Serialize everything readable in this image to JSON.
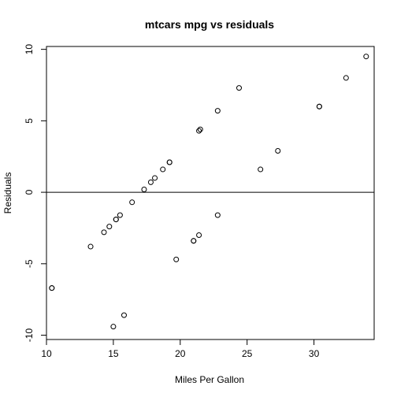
{
  "chart_data": {
    "type": "scatter",
    "title": "mtcars mpg vs residuals",
    "xlabel": "Miles Per Gallon",
    "ylabel": "Residuals",
    "xlim": [
      10,
      34.5
    ],
    "ylim": [
      -10.3,
      10.2
    ],
    "xticks": [
      10,
      15,
      20,
      25,
      30
    ],
    "xtick_labels": [
      "10",
      "15",
      "20",
      "25",
      "30"
    ],
    "yticks": [
      -10,
      -5,
      0,
      5,
      10
    ],
    "ytick_labels": [
      "-10",
      "-5",
      "0",
      "5",
      "10"
    ],
    "reference_line": {
      "type": "horizontal",
      "y": 0
    },
    "grid": false,
    "legend": false,
    "points": [
      {
        "x": 10.4,
        "y": -6.7
      },
      {
        "x": 10.4,
        "y": -6.7
      },
      {
        "x": 13.3,
        "y": -3.8
      },
      {
        "x": 14.3,
        "y": -2.8
      },
      {
        "x": 14.7,
        "y": -2.4
      },
      {
        "x": 15.0,
        "y": -9.4
      },
      {
        "x": 15.2,
        "y": -1.9
      },
      {
        "x": 15.2,
        "y": -1.9
      },
      {
        "x": 15.5,
        "y": -1.6
      },
      {
        "x": 15.8,
        "y": -8.6
      },
      {
        "x": 16.4,
        "y": -0.7
      },
      {
        "x": 17.3,
        "y": 0.2
      },
      {
        "x": 17.8,
        "y": 0.7
      },
      {
        "x": 18.1,
        "y": 1.0
      },
      {
        "x": 18.7,
        "y": 1.6
      },
      {
        "x": 19.2,
        "y": 2.1
      },
      {
        "x": 19.2,
        "y": 2.1
      },
      {
        "x": 19.7,
        "y": -4.7
      },
      {
        "x": 21.0,
        "y": -3.4
      },
      {
        "x": 21.0,
        "y": -3.4
      },
      {
        "x": 21.4,
        "y": -3.0
      },
      {
        "x": 21.4,
        "y": 4.3
      },
      {
        "x": 21.5,
        "y": 4.4
      },
      {
        "x": 22.8,
        "y": -1.6
      },
      {
        "x": 22.8,
        "y": 5.7
      },
      {
        "x": 24.4,
        "y": 7.3
      },
      {
        "x": 26.0,
        "y": 1.6
      },
      {
        "x": 27.3,
        "y": 2.9
      },
      {
        "x": 30.4,
        "y": 6.0
      },
      {
        "x": 30.4,
        "y": 6.0
      },
      {
        "x": 32.4,
        "y": 8.0
      },
      {
        "x": 33.9,
        "y": 9.5
      }
    ]
  }
}
